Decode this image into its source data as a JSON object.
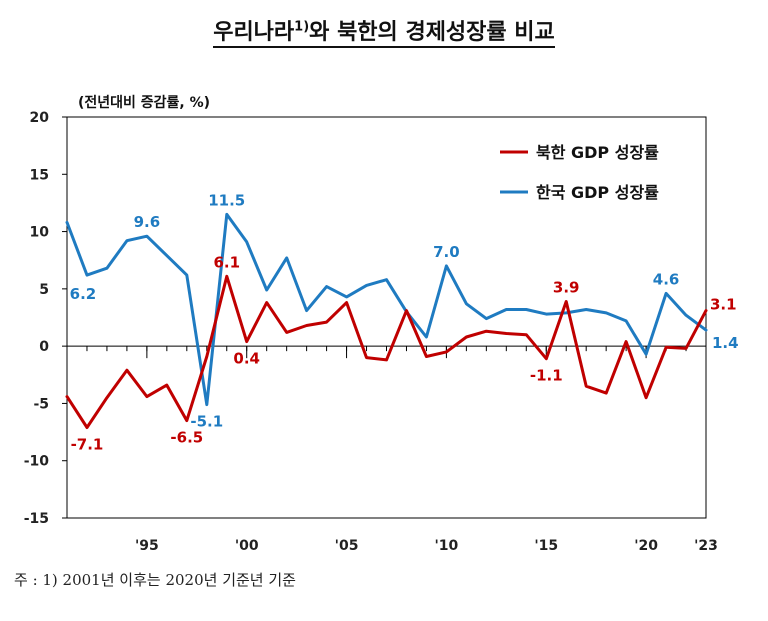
{
  "title": {
    "text": "우리나라",
    "sup": "1)",
    "text2": "와 북한의 경제성장률 비교"
  },
  "unit_label": "(전년대비 증감률, %)",
  "footnote": "주 : 1) 2001년 이후는 2020년 기준년 기준",
  "colors": {
    "north": "#c00000",
    "south": "#1f7bc1",
    "axis": "#000000"
  },
  "chart_data": {
    "type": "line",
    "title": "우리나라1)와 북한의 경제성장률 비교",
    "ylabel": "(전년대비 증감률, %)",
    "xlabel": "",
    "ylim": [
      -15,
      20
    ],
    "yticks": [
      20,
      15,
      10,
      5,
      0,
      -5,
      -10,
      -15
    ],
    "xlim": [
      1991,
      2023
    ],
    "xticks": [
      {
        "x": 1995,
        "label": "'95"
      },
      {
        "x": 2000,
        "label": "'00"
      },
      {
        "x": 2005,
        "label": "'05"
      },
      {
        "x": 2010,
        "label": "'10"
      },
      {
        "x": 2015,
        "label": "'15"
      },
      {
        "x": 2020,
        "label": "'20"
      },
      {
        "x": 2023,
        "label": "'23"
      }
    ],
    "legend_position": "top-right",
    "grid": false,
    "x": [
      1991,
      1992,
      1993,
      1994,
      1995,
      1996,
      1997,
      1998,
      1999,
      2000,
      2001,
      2002,
      2003,
      2004,
      2005,
      2006,
      2007,
      2008,
      2009,
      2010,
      2011,
      2012,
      2013,
      2014,
      2015,
      2016,
      2017,
      2018,
      2019,
      2020,
      2021,
      2022,
      2023
    ],
    "series": [
      {
        "name": "북한 GDP 성장률",
        "key": "north",
        "values": [
          -4.4,
          -7.1,
          -4.5,
          -2.1,
          -4.4,
          -3.4,
          -6.5,
          -0.9,
          6.1,
          0.4,
          3.8,
          1.2,
          1.8,
          2.1,
          3.8,
          -1.0,
          -1.2,
          3.1,
          -0.9,
          -0.5,
          0.8,
          1.3,
          1.1,
          1.0,
          -1.1,
          3.9,
          -3.5,
          -4.1,
          0.4,
          -4.5,
          -0.1,
          -0.2,
          3.1
        ],
        "labels": [
          {
            "x": 1992,
            "text": "-7.1",
            "pos": "below"
          },
          {
            "x": 1997,
            "text": "-6.5",
            "pos": "below"
          },
          {
            "x": 1999,
            "text": "6.1",
            "pos": "above"
          },
          {
            "x": 2000,
            "text": "0.4",
            "pos": "below"
          },
          {
            "x": 2015,
            "text": "-1.1",
            "pos": "below"
          },
          {
            "x": 2016,
            "text": "3.9",
            "pos": "above"
          },
          {
            "x": 2023,
            "text": "3.1",
            "pos": "right-up"
          }
        ]
      },
      {
        "name": "한국 GDP 성장률",
        "key": "south",
        "values": [
          10.8,
          6.2,
          6.8,
          9.2,
          9.6,
          7.9,
          6.2,
          -5.1,
          11.5,
          9.1,
          4.9,
          7.7,
          3.1,
          5.2,
          4.3,
          5.3,
          5.8,
          3.0,
          0.8,
          7.0,
          3.7,
          2.4,
          3.2,
          3.2,
          2.8,
          2.9,
          3.2,
          2.9,
          2.2,
          -0.7,
          4.6,
          2.7,
          1.4
        ],
        "labels": [
          {
            "x": 1992,
            "text": "6.2",
            "pos": "below-left"
          },
          {
            "x": 1995,
            "text": "9.6",
            "pos": "above"
          },
          {
            "x": 1998,
            "text": "-5.1",
            "pos": "below"
          },
          {
            "x": 1999,
            "text": "11.5",
            "pos": "above"
          },
          {
            "x": 2010,
            "text": "7.0",
            "pos": "above"
          },
          {
            "x": 2021,
            "text": "4.6",
            "pos": "above"
          },
          {
            "x": 2023,
            "text": "1.4",
            "pos": "right-down"
          }
        ]
      }
    ]
  }
}
